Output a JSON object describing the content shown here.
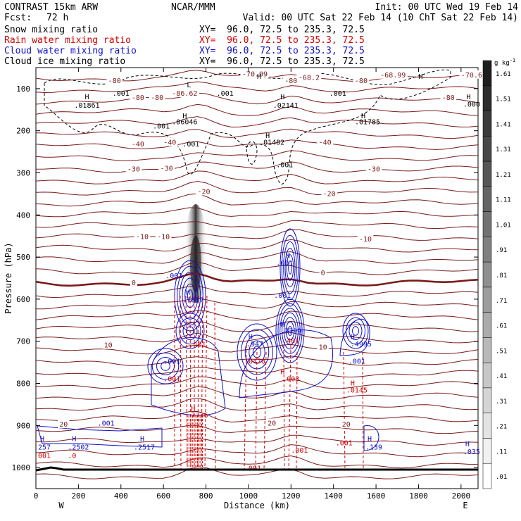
{
  "header": {
    "left_title": "CONTRAST 15km ARW",
    "center_title": "NCAR/MMM",
    "init": "Init: 00 UTC Wed 19 Feb 14",
    "fcst_label": "Fcst:",
    "fcst_value": "72 h",
    "valid": "Valid: 00 UTC Sat 22 Feb 14 (10 ChT Sat 22 Feb 14)",
    "rows": [
      {
        "name": "Snow mixing ratio",
        "xy": "XY=  96.0, 72.5 to 235.3, 72.5",
        "color": "#000000"
      },
      {
        "name": "Rain water mixing ratio",
        "xy": "XY=  96.0, 72.5 to 235.3, 72.5",
        "color": "#d40000"
      },
      {
        "name": "Cloud water mixing ratio",
        "xy": "XY=  96.0, 72.5 to 235.3, 72.5",
        "color": "#1010c8"
      },
      {
        "name": "Cloud ice mixing ratio",
        "xy": "XY=  96.0, 72.5 to 235.3, 72.5",
        "color": "#000000"
      }
    ]
  },
  "chart_data": {
    "type": "contour-cross-section",
    "xlabel": "Distance (km)",
    "ylabel": "Pressure (hPa)",
    "xlim": [
      0,
      2080
    ],
    "ylim": [
      1050,
      50
    ],
    "x_ticks": [
      0,
      200,
      400,
      600,
      800,
      1000,
      1200,
      1400,
      1600,
      1800,
      2000
    ],
    "y_ticks": [
      100,
      200,
      300,
      400,
      500,
      600,
      700,
      800,
      900,
      1000
    ],
    "x_end_labels": {
      "left": "W",
      "right": "E"
    },
    "colorbar": {
      "unit": "g kg",
      "unit_sup": "-1",
      "labels": [
        "1.61",
        "1.51",
        "1.41",
        "1.31",
        "1.21",
        "1.11",
        "1.01",
        ".91",
        ".81",
        ".71",
        ".61",
        ".51",
        ".41",
        ".31",
        ".21",
        ".11",
        ".01"
      ]
    },
    "temperature_labels": [
      {
        "text": "-80",
        "x": 370,
        "p": 82
      },
      {
        "text": "-80",
        "x": 1200,
        "p": 82
      },
      {
        "text": "-80",
        "x": 1530,
        "p": 82
      },
      {
        "text": "-80",
        "x": 480,
        "p": 122
      },
      {
        "text": "-80",
        "x": 570,
        "p": 122
      },
      {
        "text": "-80",
        "x": 1940,
        "p": 122
      },
      {
        "text": "-70.09",
        "x": 1030,
        "p": 66
      },
      {
        "text": "-68.2",
        "x": 1285,
        "p": 74
      },
      {
        "text": "-68.99",
        "x": 1680,
        "p": 68
      },
      {
        "text": "-70.6",
        "x": 2050,
        "p": 68
      },
      {
        "text": "-86.62",
        "x": 700,
        "p": 112
      },
      {
        "text": "-40",
        "x": 480,
        "p": 232
      },
      {
        "text": "-40",
        "x": 630,
        "p": 228
      },
      {
        "text": "-40",
        "x": 1360,
        "p": 228
      },
      {
        "text": "-30",
        "x": 460,
        "p": 292
      },
      {
        "text": "-30",
        "x": 615,
        "p": 290
      },
      {
        "text": "-30",
        "x": 1590,
        "p": 292
      },
      {
        "text": "-20",
        "x": 790,
        "p": 345
      },
      {
        "text": "-20",
        "x": 1380,
        "p": 350
      },
      {
        "text": "-10",
        "x": 500,
        "p": 452
      },
      {
        "text": "-10",
        "x": 600,
        "p": 452
      },
      {
        "text": "-10",
        "x": 1550,
        "p": 458
      },
      {
        "text": "0",
        "x": 460,
        "p": 562
      },
      {
        "text": "0",
        "x": 1350,
        "p": 538
      },
      {
        "text": "10",
        "x": 340,
        "p": 710
      },
      {
        "text": "10",
        "x": 1350,
        "p": 715
      },
      {
        "text": "20",
        "x": 130,
        "p": 898
      },
      {
        "text": "20",
        "x": 1110,
        "p": 895
      },
      {
        "text": "20",
        "x": 1460,
        "p": 898
      }
    ],
    "extrema_labels": [
      {
        "text": "H",
        "x": 240,
        "p": 120,
        "color": "#000000"
      },
      {
        "text": ".01861",
        "x": 240,
        "p": 140,
        "color": "#000000"
      },
      {
        "text": "H",
        "x": 700,
        "p": 165,
        "color": "#000000"
      },
      {
        "text": ".06046",
        "x": 700,
        "p": 180,
        "color": "#000000"
      },
      {
        "text": "H",
        "x": 1160,
        "p": 120,
        "color": "#000000"
      },
      {
        "text": ".02141",
        "x": 1175,
        "p": 140,
        "color": "#000000"
      },
      {
        "text": "H",
        "x": 1540,
        "p": 165,
        "color": "#000000"
      },
      {
        "text": ".01785",
        "x": 1560,
        "p": 180,
        "color": "#000000"
      },
      {
        "text": "H",
        "x": 1090,
        "p": 212,
        "color": "#000000"
      },
      {
        "text": ".01482",
        "x": 1110,
        "p": 228,
        "color": "#000000"
      },
      {
        "text": "H",
        "x": 2035,
        "p": 120,
        "color": "#000000"
      },
      {
        "text": ".000",
        "x": 2050,
        "p": 138,
        "color": "#000000"
      },
      {
        "text": "L",
        "x": 720,
        "p": 92,
        "color": "#000000"
      },
      {
        "text": ".001",
        "x": 400,
        "p": 112,
        "color": "#000000"
      },
      {
        "text": ".001",
        "x": 890,
        "p": 112,
        "color": "#000000"
      },
      {
        "text": ".001",
        "x": 1420,
        "p": 112,
        "color": "#000000"
      },
      {
        "text": ".001",
        "x": 590,
        "p": 190,
        "color": "#000000"
      },
      {
        "text": ".001",
        "x": 730,
        "p": 232,
        "color": "#000000"
      },
      {
        "text": ".001",
        "x": 1170,
        "p": 282,
        "color": "#000000"
      },
      {
        "text": "H",
        "x": 1050,
        "p": 72,
        "color": "#000000"
      },
      {
        "text": "H",
        "x": 1810,
        "p": 72,
        "color": "#000000"
      },
      {
        "text": "H",
        "x": 715,
        "p": 584,
        "color": "#1010c8"
      },
      {
        "text": ".7837",
        "x": 740,
        "p": 603,
        "color": "#1010c8"
      },
      {
        "text": ".001",
        "x": 650,
        "p": 545,
        "color": "#1010c8"
      },
      {
        "text": "M",
        "x": 1185,
        "p": 497,
        "color": "#1010c8"
      },
      {
        "text": ".001",
        "x": 1170,
        "p": 515,
        "color": "#1010c8"
      },
      {
        "text": ".001",
        "x": 1160,
        "p": 592,
        "color": "#1010c8"
      },
      {
        "text": "H",
        "x": 1160,
        "p": 660,
        "color": "#1010c8"
      },
      {
        "text": ".7799",
        "x": 1200,
        "p": 676,
        "color": "#1010c8"
      },
      {
        "text": "H",
        "x": 1010,
        "p": 690,
        "color": "#1010c8"
      },
      {
        "text": ".947",
        "x": 1030,
        "p": 707,
        "color": "#1010c8"
      },
      {
        "text": "H",
        "x": 1490,
        "p": 690,
        "color": "#1010c8"
      },
      {
        "text": ".4995",
        "x": 1530,
        "p": 707,
        "color": "#1010c8"
      },
      {
        "text": ".001",
        "x": 1510,
        "p": 748,
        "color": "#1010c8"
      },
      {
        "text": ".001",
        "x": 640,
        "p": 748,
        "color": "#1010c8"
      },
      {
        "text": ".001",
        "x": 330,
        "p": 895,
        "color": "#1010c8"
      },
      {
        "text": "H",
        "x": 30,
        "p": 932,
        "color": "#1010c8"
      },
      {
        "text": ".257",
        "x": 30,
        "p": 952,
        "color": "#1010c8"
      },
      {
        "text": "H",
        "x": 180,
        "p": 932,
        "color": "#1010c8"
      },
      {
        "text": ".2502",
        "x": 200,
        "p": 952,
        "color": "#1010c8"
      },
      {
        "text": "H",
        "x": 500,
        "p": 932,
        "color": "#1010c8"
      },
      {
        "text": ".2517",
        "x": 510,
        "p": 952,
        "color": "#1010c8"
      },
      {
        "text": "H",
        "x": 1570,
        "p": 932,
        "color": "#1010c8"
      },
      {
        "text": ".139",
        "x": 1590,
        "p": 952,
        "color": "#1010c8"
      },
      {
        "text": "H",
        "x": 2030,
        "p": 945,
        "color": "#1010c8"
      },
      {
        "text": ".035",
        "x": 2050,
        "p": 963,
        "color": "#1010c8"
      },
      {
        "text": ".001",
        "x": 640,
        "p": 790,
        "color": "#d40000"
      },
      {
        "text": ".401",
        "x": 760,
        "p": 708,
        "color": "#d40000"
      },
      {
        "text": ".401",
        "x": 1200,
        "p": 700,
        "color": "#d40000"
      },
      {
        "text": ".0478",
        "x": 1030,
        "p": 748,
        "color": "#d40000"
      },
      {
        "text": "H",
        "x": 1160,
        "p": 773,
        "color": "#d40000"
      },
      {
        "text": ".003",
        "x": 1200,
        "p": 790,
        "color": "#d40000"
      },
      {
        "text": "H",
        "x": 1490,
        "p": 800,
        "color": "#d40000"
      },
      {
        "text": ".0145",
        "x": 1510,
        "p": 817,
        "color": "#d40000"
      },
      {
        "text": "H",
        "x": 740,
        "p": 860,
        "color": "#d40000"
      },
      {
        "text": ".7736",
        "x": 760,
        "p": 876,
        "color": "#d40000"
      },
      {
        "text": ".001",
        "x": 30,
        "p": 972,
        "color": "#d40000"
      },
      {
        "text": ".0",
        "x": 170,
        "p": 972,
        "color": "#d40000"
      },
      {
        "text": ".001",
        "x": 1240,
        "p": 960,
        "color": "#d40000"
      },
      {
        "text": ".001",
        "x": 1450,
        "p": 942,
        "color": "#d40000"
      },
      {
        "text": ".001",
        "x": 1020,
        "p": 1002,
        "color": "#d40000"
      }
    ]
  }
}
